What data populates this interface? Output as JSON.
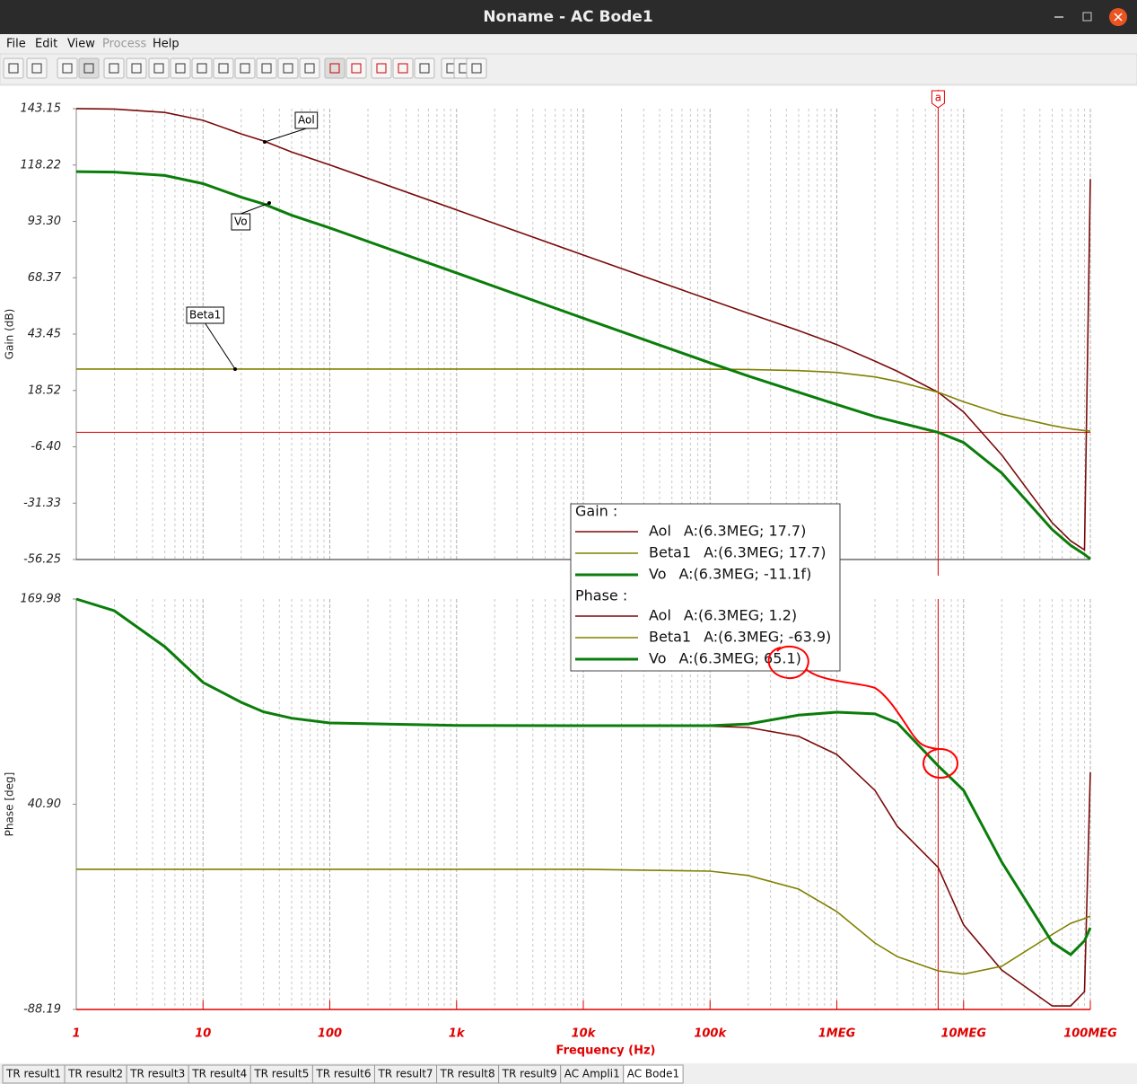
{
  "window": {
    "title": "Noname - AC Bode1"
  },
  "menu": [
    "File",
    "Edit",
    "View",
    "Process",
    "Help"
  ],
  "tabs": [
    "TR result1",
    "TR result2",
    "TR result3",
    "TR result4",
    "TR result5",
    "TR result6",
    "TR result7",
    "TR result8",
    "TR result9",
    "AC Ampli1",
    "AC Bode1"
  ],
  "chart_data": [
    {
      "type": "line",
      "y_label": "Gain (dB)",
      "legend_title": "Gain :",
      "log_x": true,
      "grid": "x",
      "cursor": {
        "label": "a",
        "x": 6300000
      },
      "reference_line": 0,
      "x": [
        1,
        2,
        5,
        10,
        20,
        30,
        50,
        100,
        1000,
        10000,
        100000,
        200000,
        500000,
        1000000,
        2000000,
        3000000,
        6300000,
        10000000,
        20000000,
        50000000,
        70000000,
        90000000,
        100000000
      ],
      "xlim": [
        1,
        100000000
      ],
      "xticks": [
        1,
        10,
        100,
        1000,
        10000,
        100000,
        1000000,
        10000000,
        100000000
      ],
      "ylim": [
        -56.25,
        143.15
      ],
      "yticks": [
        143.15,
        118.22,
        {
          "value": 93.3,
          "label": "93.30"
        },
        68.37,
        43.45,
        18.52,
        {
          "value": -6.4,
          "label": "-6.40"
        },
        -31.33,
        -56.25
      ],
      "annotations": [
        "Aol",
        "Vo",
        "Beta1"
      ],
      "series": [
        {
          "name": "Aol",
          "color": "#7a0a0a",
          "readout": "A:(6.3MEG; 17.7)",
          "values": [
            143.2,
            143,
            141.5,
            138,
            132,
            128.9,
            124,
            118.3,
            98.4,
            78.4,
            58.6,
            52.7,
            45,
            38.8,
            31.5,
            27,
            17.7,
            9,
            -10,
            -40,
            -48,
            -52,
            112
          ]
        },
        {
          "name": "Beta1",
          "color": "#808000",
          "readout": "A:(6.3MEG; 17.7)",
          "values": [
            28,
            28,
            28,
            28,
            28,
            28,
            28,
            28,
            28,
            28,
            27.9,
            27.8,
            27.3,
            26.5,
            24.5,
            22.5,
            17.7,
            13.5,
            8,
            3,
            1.5,
            0.8,
            0.5
          ]
        },
        {
          "name": "Vo",
          "color": "#0a7d0a",
          "readout": "A:(6.3MEG; -11.1f)",
          "values": [
            115.3,
            115.1,
            113.6,
            110,
            104,
            101,
            96,
            90.4,
            70.5,
            50.5,
            30.7,
            24.9,
            17.7,
            12.3,
            7,
            4.5,
            0,
            -4.5,
            -18,
            -43,
            -50,
            -54,
            -56
          ]
        }
      ]
    },
    {
      "type": "line",
      "y_label": "Phase [deg]",
      "x_label": "Frequency (Hz)",
      "legend_title": "Phase :",
      "log_x": true,
      "grid": "x",
      "cursor": {
        "label": "a",
        "x": 6300000
      },
      "x": [
        1,
        2,
        5,
        10,
        20,
        30,
        50,
        100,
        1000,
        10000,
        100000,
        200000,
        500000,
        1000000,
        2000000,
        3000000,
        6300000,
        10000000,
        20000000,
        50000000,
        70000000,
        90000000,
        100000000
      ],
      "xlim": [
        1,
        100000000
      ],
      "xticks": [
        1,
        10,
        100,
        {
          "value": 1000,
          "label": "1k"
        },
        {
          "value": 10000,
          "label": "10k"
        },
        {
          "value": 100000,
          "label": "100k"
        },
        {
          "value": 1000000,
          "label": "1MEG"
        },
        {
          "value": 10000000,
          "label": "10MEG"
        },
        {
          "value": 100000000,
          "label": "100MEG"
        }
      ],
      "ylim": [
        -88.19,
        169.98
      ],
      "yticks": [
        169.98,
        {
          "value": 40.9,
          "label": "40.90"
        },
        -88.19
      ],
      "series": [
        {
          "name": "Aol",
          "color": "#7a0a0a",
          "readout": "A:(6.3MEG; 1.2)",
          "values": [
            170,
            162.6,
            140,
            117.5,
            105,
            99,
            95,
            92,
            90.5,
            90.3,
            90,
            89.2,
            83.6,
            72.2,
            49.6,
            27,
            1.2,
            -35,
            -63.4,
            -86,
            -86,
            -77,
            61
          ]
        },
        {
          "name": "Beta1",
          "color": "#808000",
          "readout": "A:(6.3MEG; -63.9)",
          "values": [
            0,
            0,
            0,
            0,
            0,
            0,
            0,
            0,
            0,
            0,
            -1.2,
            -3.9,
            -12.5,
            -26.6,
            -46.4,
            -55,
            -63.9,
            -66,
            -61,
            -41,
            -34,
            -31,
            -29.5
          ]
        },
        {
          "name": "Vo",
          "color": "#0a7d0a",
          "readout": "A:(6.3MEG; 65.1)",
          "values": [
            170,
            162.6,
            140,
            117.5,
            105,
            99,
            95,
            92,
            90.5,
            90.3,
            90.3,
            91.4,
            97,
            98.8,
            97.7,
            92,
            65.1,
            49.6,
            4.5,
            -46,
            -53.7,
            -45,
            -36.8
          ]
        }
      ]
    }
  ]
}
